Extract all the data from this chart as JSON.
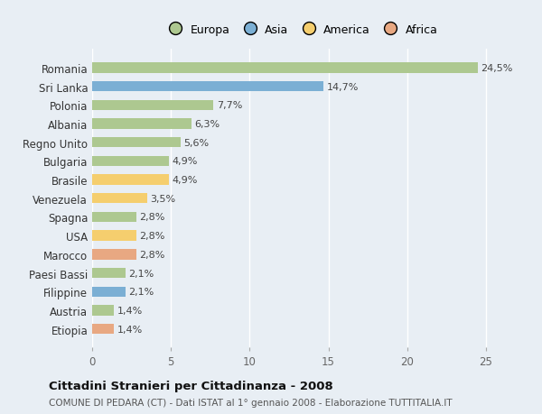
{
  "categories": [
    "Romania",
    "Sri Lanka",
    "Polonia",
    "Albania",
    "Regno Unito",
    "Bulgaria",
    "Brasile",
    "Venezuela",
    "Spagna",
    "USA",
    "Marocco",
    "Paesi Bassi",
    "Filippine",
    "Austria",
    "Etiopia"
  ],
  "values": [
    24.5,
    14.7,
    7.7,
    6.3,
    5.6,
    4.9,
    4.9,
    3.5,
    2.8,
    2.8,
    2.8,
    2.1,
    2.1,
    1.4,
    1.4
  ],
  "labels": [
    "24,5%",
    "14,7%",
    "7,7%",
    "6,3%",
    "5,6%",
    "4,9%",
    "4,9%",
    "3,5%",
    "2,8%",
    "2,8%",
    "2,8%",
    "2,1%",
    "2,1%",
    "1,4%",
    "1,4%"
  ],
  "colors": [
    "#adc890",
    "#7bafd4",
    "#adc890",
    "#adc890",
    "#adc890",
    "#adc890",
    "#f5ce6e",
    "#f5ce6e",
    "#adc890",
    "#f5ce6e",
    "#e8a882",
    "#adc890",
    "#7bafd4",
    "#adc890",
    "#e8a882"
  ],
  "legend_labels": [
    "Europa",
    "Asia",
    "America",
    "Africa"
  ],
  "legend_colors": [
    "#adc890",
    "#7bafd4",
    "#f5ce6e",
    "#e8a882"
  ],
  "title": "Cittadini Stranieri per Cittadinanza - 2008",
  "subtitle": "COMUNE DI PEDARA (CT) - Dati ISTAT al 1° gennaio 2008 - Elaborazione TUTTITALIA.IT",
  "xlim": [
    0,
    26.5
  ],
  "xticks": [
    0,
    5,
    10,
    15,
    20,
    25
  ],
  "bg_color": "#e8eef4",
  "plot_bg_color": "#e8eef4",
  "grid_color": "#ffffff",
  "bar_height": 0.55,
  "label_fontsize": 8,
  "tick_fontsize": 8.5,
  "legend_fontsize": 9
}
